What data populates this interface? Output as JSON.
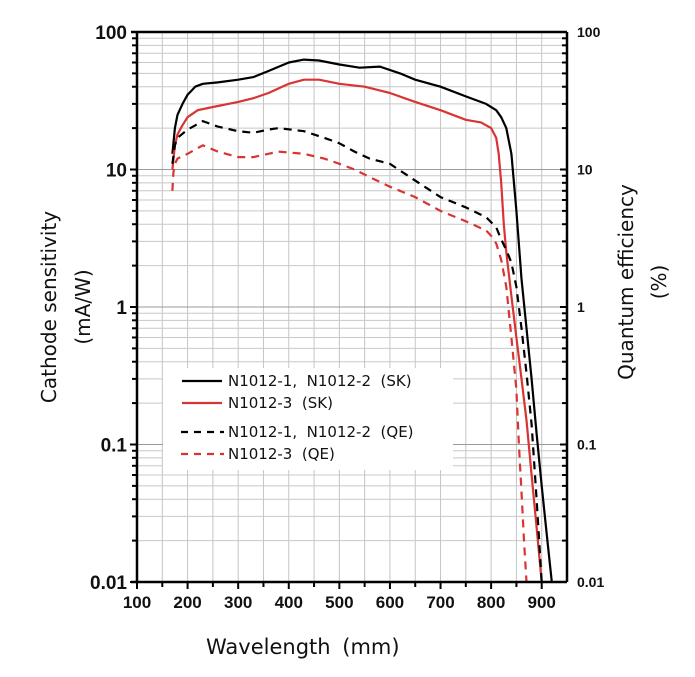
{
  "chart_data": {
    "type": "line",
    "title": "",
    "xlabel": "Wavelength (mm)",
    "ylabel": "Cathode sensitivity (mA/W)",
    "ylabel_line1": "Cathode sensitivity",
    "ylabel_line2": "(mA/W)",
    "y2label": "Quantum efficiency (%)",
    "y2label_line1": "Quantum efficiency",
    "y2label_line2": "(%)",
    "xlabel_word": "Wavelength",
    "xlabel_unit": "(mm)",
    "xlim": [
      100,
      950
    ],
    "ylim": [
      0.01,
      100
    ],
    "yscale": "log",
    "grid": true,
    "legend_position": "center-left",
    "x_ticks": [
      "100",
      "200",
      "300",
      "400",
      "500",
      "600",
      "700",
      "800",
      "900"
    ],
    "x_tick_values": [
      100,
      200,
      300,
      400,
      500,
      600,
      700,
      800,
      900
    ],
    "y_ticks": [
      "100",
      "10",
      "1",
      "0.1",
      "0.01"
    ],
    "y_tick_values": [
      100,
      10,
      1,
      0.1,
      0.01
    ],
    "y2_ticks": [
      "100",
      "10",
      "1",
      "0.1",
      "0.01"
    ],
    "series": [
      {
        "name": "N1012-1,  N1012-2  (SK)",
        "color": "#000000",
        "style": "solid",
        "x": [
          170,
          175,
          180,
          190,
          200,
          215,
          230,
          260,
          300,
          330,
          360,
          400,
          430,
          460,
          500,
          540,
          580,
          620,
          650,
          700,
          750,
          790,
          810,
          820,
          830,
          840,
          850,
          860,
          870,
          880,
          890,
          900,
          910,
          920
        ],
        "y": [
          13,
          20,
          25,
          30,
          35,
          40,
          42,
          43,
          45,
          47,
          52,
          60,
          63,
          62,
          58,
          55,
          56,
          50,
          45,
          40,
          34,
          30,
          27,
          24,
          20,
          13,
          5,
          1.6,
          0.7,
          0.3,
          0.12,
          0.05,
          0.022,
          0.01
        ]
      },
      {
        "name": "N1012-3  (SK)",
        "color": "#d93434",
        "style": "solid",
        "x": [
          170,
          175,
          180,
          190,
          200,
          220,
          250,
          300,
          330,
          360,
          400,
          430,
          460,
          500,
          550,
          600,
          650,
          700,
          750,
          780,
          800,
          810,
          815,
          820,
          825,
          830,
          840,
          850,
          860,
          870,
          880,
          890,
          900
        ],
        "y": [
          10,
          15,
          18,
          21,
          24,
          27,
          28.5,
          31,
          33,
          36,
          42,
          45,
          45,
          42,
          40,
          36,
          31,
          27,
          23,
          22,
          20,
          17,
          13,
          8,
          4,
          2.5,
          1.2,
          0.6,
          0.3,
          0.15,
          0.06,
          0.025,
          0.01
        ]
      },
      {
        "name": "N1012-1,  N1012-2  (QE)",
        "color": "#000000",
        "style": "dashed",
        "x": [
          170,
          175,
          180,
          200,
          230,
          260,
          300,
          330,
          360,
          380,
          430,
          470,
          500,
          530,
          560,
          600,
          650,
          700,
          750,
          790,
          810,
          820,
          830,
          840,
          850,
          860,
          870,
          880,
          890,
          900
        ],
        "y": [
          11,
          15,
          17,
          19.5,
          22.5,
          20.5,
          19,
          18.5,
          19.5,
          20,
          19,
          17,
          15.5,
          13.5,
          12,
          11,
          8.3,
          6.3,
          5.3,
          4.5,
          3.8,
          3.1,
          2.6,
          2.1,
          1.4,
          0.7,
          0.33,
          0.14,
          0.04,
          0.01
        ]
      },
      {
        "name": "N1012-3  (QE)",
        "color": "#d93434",
        "style": "dashed",
        "x": [
          170,
          172,
          175,
          180,
          200,
          230,
          260,
          300,
          330,
          360,
          380,
          430,
          470,
          500,
          530,
          560,
          600,
          650,
          700,
          750,
          790,
          800,
          810,
          820,
          830,
          840,
          850,
          855,
          860,
          865,
          870
        ],
        "y": [
          7,
          9.5,
          11,
          12,
          13,
          15,
          13.5,
          12.3,
          12.3,
          13,
          13.5,
          13,
          12,
          11,
          10,
          8.8,
          7.5,
          6.3,
          5,
          4.2,
          3.6,
          3.3,
          2.9,
          2.2,
          1.4,
          0.6,
          0.25,
          0.1,
          0.045,
          0.02,
          0.01
        ]
      }
    ]
  },
  "legend": {
    "items": [
      {
        "label": "N1012-1,  N1012-2  (SK)"
      },
      {
        "label": "N1012-3  (SK)"
      },
      {
        "label": "N1012-1,  N1012-2  (QE)"
      },
      {
        "label": "N1012-3  (QE)"
      }
    ]
  }
}
